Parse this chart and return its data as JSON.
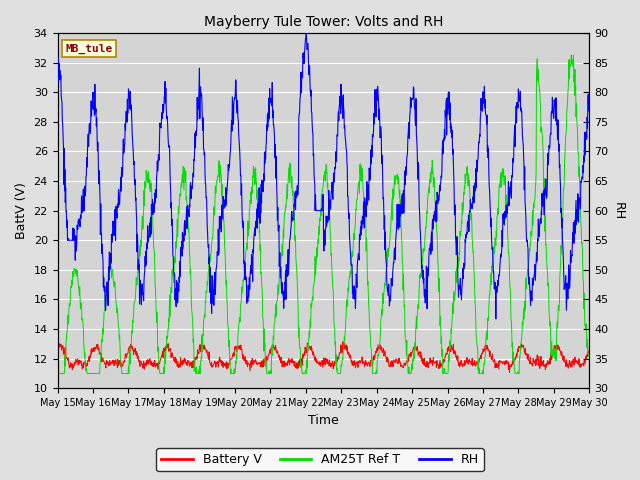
{
  "title": "Mayberry Tule Tower: Volts and RH",
  "xlabel": "Time",
  "ylabel_left": "BattV (V)",
  "ylabel_right": "RH",
  "station_label": "MB_tule",
  "ylim_left": [
    10,
    34
  ],
  "ylim_right": [
    30,
    90
  ],
  "yticks_left": [
    10,
    12,
    14,
    16,
    18,
    20,
    22,
    24,
    26,
    28,
    30,
    32,
    34
  ],
  "yticks_right": [
    30,
    35,
    40,
    45,
    50,
    55,
    60,
    65,
    70,
    75,
    80,
    85,
    90
  ],
  "bg_color": "#e0e0e0",
  "plot_bg_color": "#d4d4d4",
  "grid_color": "#ffffff",
  "battery_color": "#ff0000",
  "am25t_color": "#00dd00",
  "rh_color": "#0000ff",
  "n_days": 15,
  "n_points_per_day": 96,
  "day_start": 15
}
